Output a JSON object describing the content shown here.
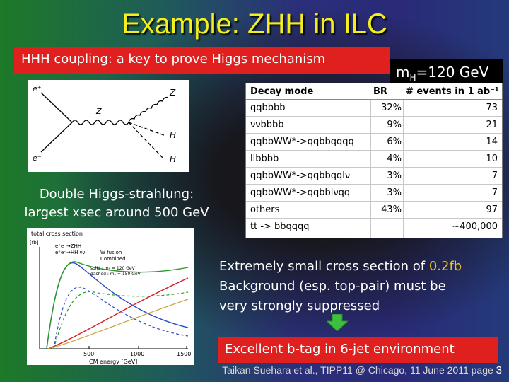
{
  "title": "Example: ZHH in ILC",
  "subtitle": "HHH coupling: a key to prove Higgs mechanism",
  "mass_prefix": "m",
  "mass_sub": "H",
  "mass_value": "=120 GeV",
  "double_higgs": [
    "Double Higgs-strahlung:",
    "largest xsec around 500 GeV"
  ],
  "feynman": {
    "ep": "e⁺",
    "em": "e⁻",
    "z_out": "Z",
    "z_mid": "Z",
    "h1": "H",
    "h2": "H"
  },
  "table": {
    "headers": [
      "Decay mode",
      "BR",
      "# events in 1 ab⁻¹"
    ],
    "rows": [
      {
        "mode": "qqbbbb",
        "br": "32%",
        "events": "73"
      },
      {
        "mode": "ννbbbb",
        "br": "9%",
        "events": "21"
      },
      {
        "mode": "qqbbWW*->qqbbqqqq",
        "br": "6%",
        "events": "14"
      },
      {
        "mode": "llbbbb",
        "br": "4%",
        "events": "10"
      },
      {
        "mode": "qqbbWW*->qqbbqqlν",
        "br": "3%",
        "events": "7"
      },
      {
        "mode": "qqbbWW*->qqbblνqq",
        "br": "3%",
        "events": "7"
      },
      {
        "mode": "others",
        "br": "43%",
        "events": "97"
      },
      {
        "mode": "tt -> bbqqqq",
        "br": "",
        "events": "~400,000"
      }
    ]
  },
  "graph": {
    "title": "total cross section",
    "yunit": "[fb]",
    "legend": [
      "e⁺e⁻→ZHH",
      "e⁺e⁻→HH νν",
      "W fusion",
      "Combined"
    ],
    "note": [
      "solid : mₕ = 120 GeV",
      "dashed : mₕ = 150 GeV"
    ],
    "xticks": [
      "500",
      "1000",
      "1500"
    ],
    "xlabel": "CM energy [GeV]"
  },
  "message": {
    "line1_pre": "Extremely small cross section of ",
    "line1_hl": "0.2fb",
    "line2": "Background (esp. top-pair) must be",
    "line3": "very strongly suppressed"
  },
  "bottom": "Excellent b-tag in 6-jet environment",
  "footer": {
    "text": "Taikan Suehara et al., TIPP11 @ Chicago, 11 June 2011 page",
    "page": "3"
  },
  "colors": {
    "title": "#f2ee1f",
    "red_box": "#e0201e",
    "highlight": "#f2c318",
    "arrow": "#3fbf3f"
  }
}
